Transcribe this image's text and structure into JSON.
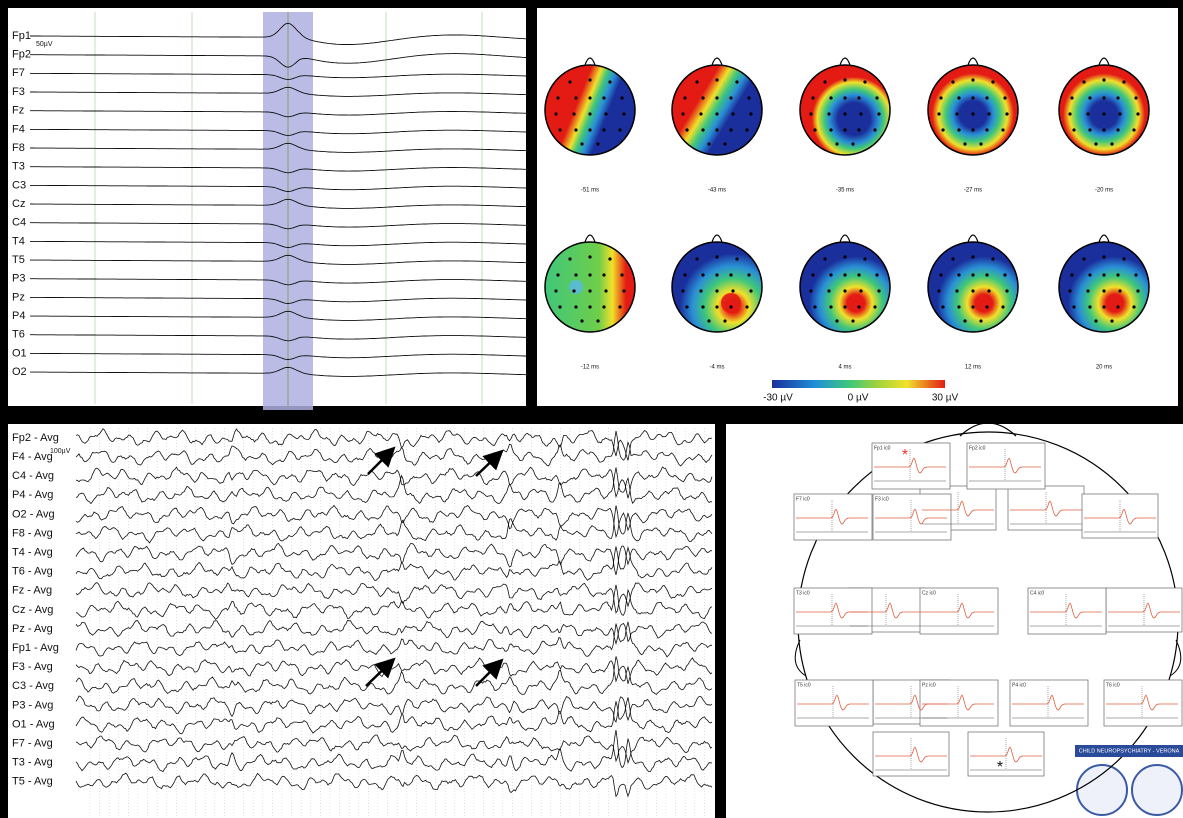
{
  "panel_a": {
    "scale": "50µV",
    "channels": [
      "Fp1",
      "Fp2",
      "F7",
      "F3",
      "Fz",
      "F4",
      "F8",
      "T3",
      "C3",
      "Cz",
      "C4",
      "T4",
      "T5",
      "P3",
      "Pz",
      "P4",
      "T6",
      "O1",
      "O2"
    ]
  },
  "panel_b": {
    "times": [
      "-51 ms",
      "-43 ms",
      "-35 ms",
      "-27 ms",
      "-20 ms",
      "-12 ms",
      "-4 ms",
      "4 ms",
      "12 ms",
      "20 ms"
    ],
    "colorbar": [
      "-30 µV",
      "0 µV",
      "30 µV"
    ]
  },
  "panel_c": {
    "scale": "100µV",
    "channels": [
      "Fp2 - Avg",
      "F4 - Avg",
      "C4 - Avg",
      "P4 - Avg",
      "O2 - Avg",
      "F8 - Avg",
      "T4 - Avg",
      "T6 - Avg",
      "Fz - Avg",
      "Cz - Avg",
      "Pz - Avg",
      "Fp1 - Avg",
      "F3 - Avg",
      "C3 - Avg",
      "P3 - Avg",
      "O1 - Avg",
      "F7 - Avg",
      "T3 - Avg",
      "T5 - Avg"
    ]
  },
  "panel_d": {
    "boxes": [
      "Fp1 ic0",
      "Fp2 ic0",
      "F7 ic0",
      "F3 ic0",
      "T3 ic0",
      "Cz ic0",
      "C4 ic0",
      "T5 ic0",
      "Pz ic0",
      "P4 ic0",
      "T6 ic0"
    ],
    "asterisks": [
      "*",
      "*"
    ],
    "logo": "CHILD NEUROPSYCHIATRY - VERONA"
  }
}
